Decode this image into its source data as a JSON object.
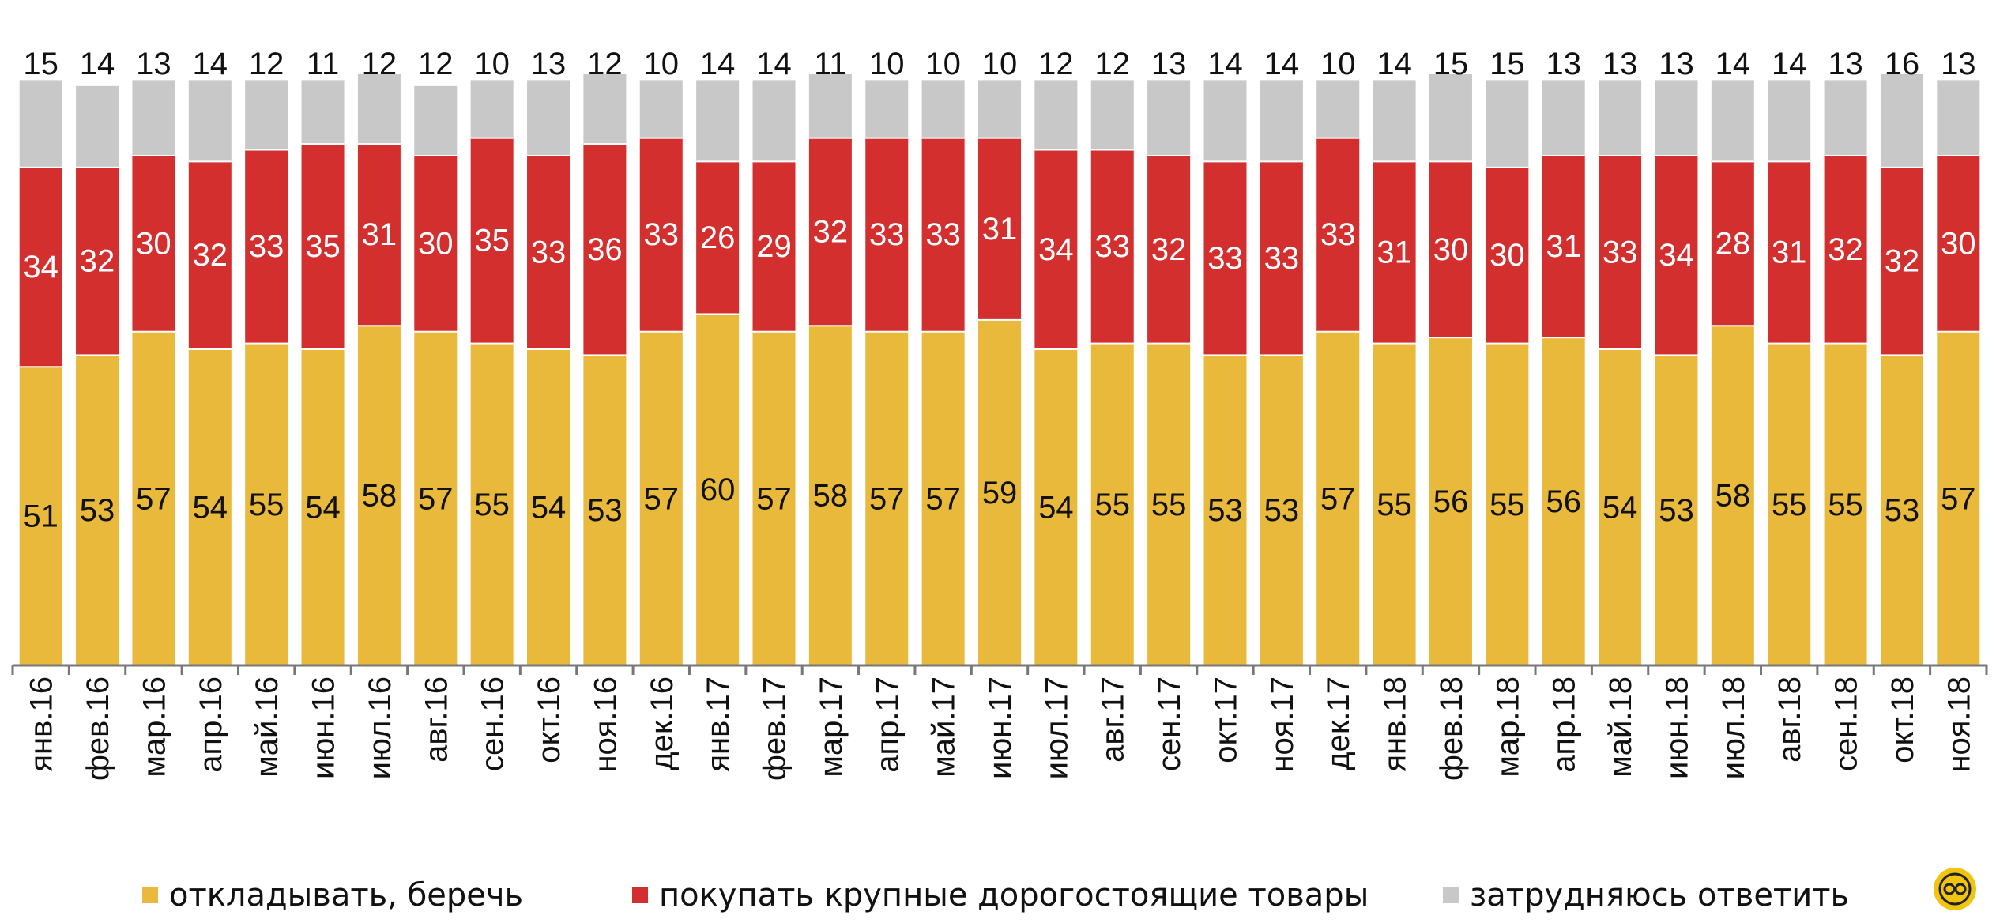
{
  "chart_data": {
    "type": "bar",
    "stacked": true,
    "categories": [
      "янв.16",
      "фев.16",
      "мар.16",
      "апр.16",
      "май.16",
      "июн.16",
      "июл.16",
      "авг.16",
      "сен.16",
      "окт.16",
      "ноя.16",
      "дек.16",
      "янв.17",
      "фев.17",
      "мар.17",
      "апр.17",
      "май.17",
      "июн.17",
      "июл.17",
      "авг.17",
      "сен.17",
      "окт.17",
      "ноя.17",
      "дек.17",
      "янв.18",
      "фев.18",
      "мар.18",
      "апр.18",
      "май.18",
      "июн.18",
      "июл.18",
      "авг.18",
      "сен.18",
      "окт.18",
      "ноя.18"
    ],
    "series": [
      {
        "name": "откладывать, беречь",
        "color": "#e9b93c",
        "values": [
          51,
          53,
          57,
          54,
          55,
          54,
          58,
          57,
          55,
          54,
          53,
          57,
          60,
          57,
          58,
          57,
          57,
          59,
          54,
          55,
          55,
          53,
          53,
          57,
          55,
          56,
          55,
          56,
          54,
          53,
          58,
          55,
          55,
          53,
          57
        ]
      },
      {
        "name": "покупать крупные  дорогостоящие  товары",
        "color": "#d32f2f",
        "values": [
          34,
          32,
          30,
          32,
          33,
          35,
          31,
          30,
          35,
          33,
          36,
          33,
          26,
          29,
          32,
          33,
          33,
          31,
          34,
          33,
          32,
          33,
          33,
          33,
          31,
          30,
          30,
          31,
          33,
          34,
          28,
          31,
          32,
          32,
          30
        ]
      },
      {
        "name": "затрудняюсь ответить",
        "color": "#c8c8c8",
        "values": [
          15,
          14,
          13,
          14,
          12,
          11,
          12,
          12,
          10,
          13,
          12,
          10,
          14,
          14,
          11,
          10,
          10,
          10,
          12,
          12,
          13,
          14,
          14,
          10,
          14,
          15,
          15,
          13,
          13,
          13,
          14,
          14,
          13,
          16,
          13
        ]
      }
    ],
    "ylim": [
      0,
      100
    ],
    "grid": false,
    "legend_position": "bottom"
  },
  "logo": {
    "name": "fom-logo-icon"
  }
}
